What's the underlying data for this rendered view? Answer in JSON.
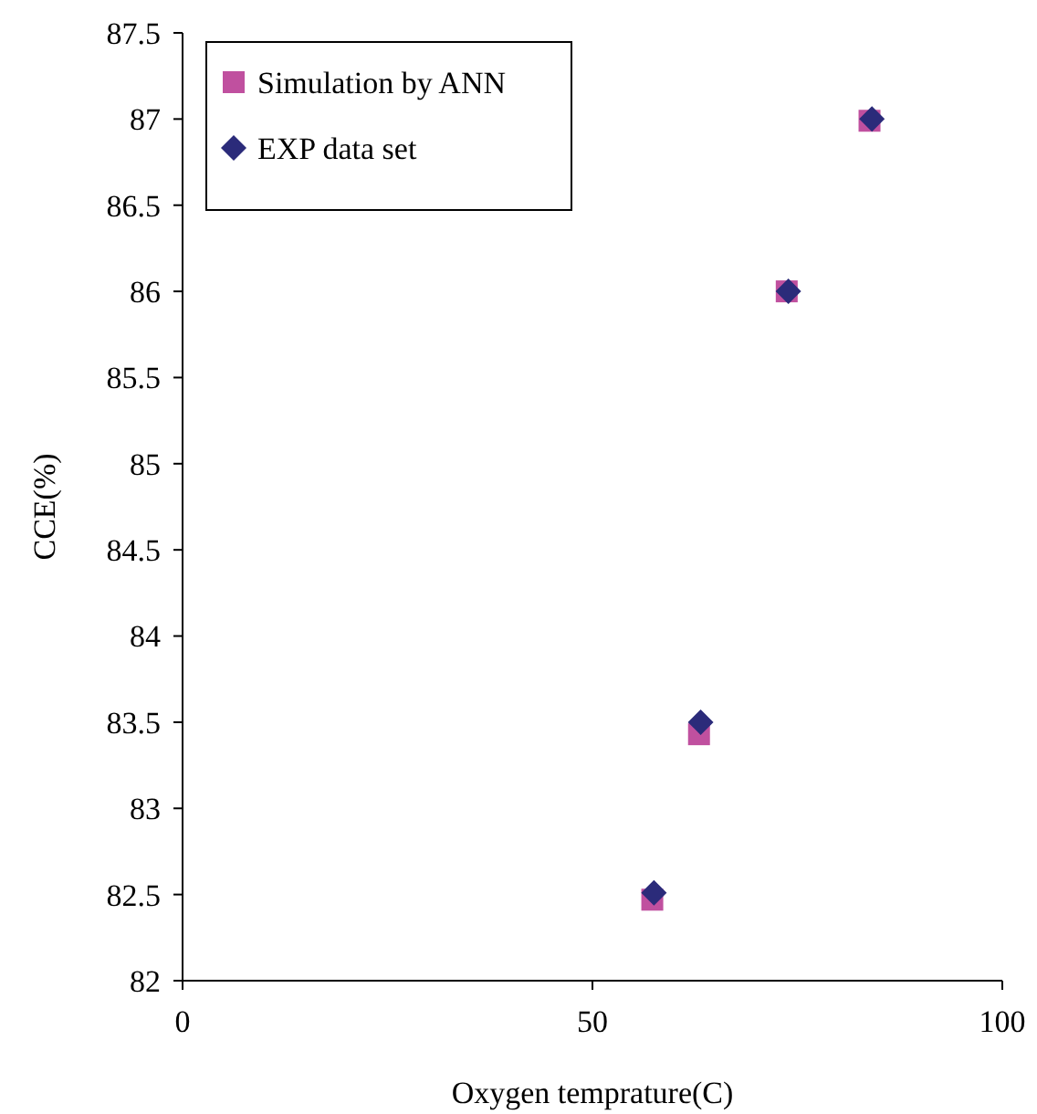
{
  "chart_data": {
    "type": "scatter",
    "xlabel": "Oxygen temprature(C)",
    "ylabel": "CCE(%)",
    "xlim": [
      0,
      100
    ],
    "xticks": [
      0,
      50,
      100
    ],
    "ylim": [
      82,
      87.5
    ],
    "yticks": [
      82,
      82.5,
      83,
      83.5,
      84,
      84.5,
      85,
      85.5,
      86,
      86.5,
      87,
      87.5
    ],
    "grid": false,
    "legend": "top left",
    "series": [
      {
        "name": "Simulation by ANN",
        "color": "#c0509f",
        "marker": "square",
        "x": [
          57.3,
          63,
          73.7,
          83.8
        ],
        "values": [
          82.47,
          83.43,
          86,
          86.99
        ]
      },
      {
        "name": "EXP data set",
        "color": "#2b2b7a",
        "marker": "diamond",
        "x": [
          57.5,
          63.2,
          73.9,
          84.1
        ],
        "values": [
          82.51,
          83.5,
          86,
          87
        ]
      }
    ]
  }
}
